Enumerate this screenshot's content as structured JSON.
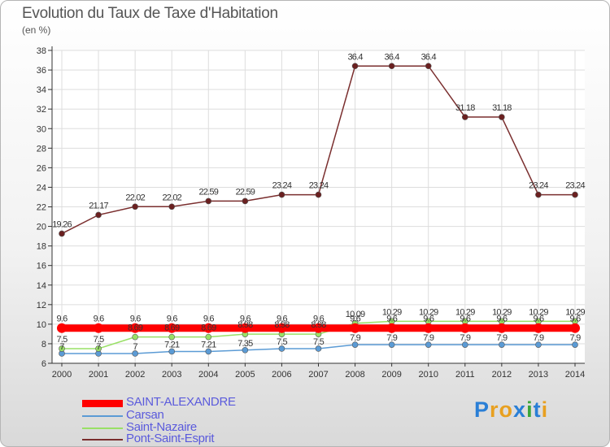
{
  "header": {
    "title": "Evolution du Taux de Taxe d'Habitation",
    "subtitle": "(en %)"
  },
  "logo": {
    "text": "Proxiti"
  },
  "chart_data": {
    "type": "line",
    "x": [
      "2000",
      "2001",
      "2002",
      "2003",
      "2004",
      "2005",
      "2006",
      "2007",
      "2008",
      "2009",
      "2010",
      "2011",
      "2012",
      "2013",
      "2014"
    ],
    "ylim": [
      6,
      38
    ],
    "yticks": [
      "6",
      "8",
      "10",
      "12",
      "14",
      "16",
      "18",
      "20",
      "22",
      "24",
      "26",
      "28",
      "30",
      "32",
      "34",
      "36",
      "38"
    ],
    "grid": true,
    "legend_position": "bottom-left",
    "series": [
      {
        "name": "SAINT-ALEXANDRE",
        "color": "#ff0000",
        "values": [
          9.6,
          9.6,
          9.6,
          9.6,
          9.6,
          9.6,
          9.6,
          9.6,
          9.6,
          9.6,
          9.6,
          9.6,
          9.6,
          9.6,
          9.6
        ],
        "labels": [
          "9.6",
          "9.6",
          "9.6",
          "9.6",
          "9.6",
          "9.6",
          "9.6",
          "9.6",
          "9.6",
          "9.6",
          "9.6",
          "9.6",
          "9.6",
          "9.6",
          "9.6"
        ]
      },
      {
        "name": "Carsan",
        "color": "#5b9bd5",
        "values": [
          7,
          7,
          7,
          7.21,
          7.21,
          7.35,
          7.5,
          7.5,
          7.9,
          7.9,
          7.9,
          7.9,
          7.9,
          7.9,
          7.9
        ],
        "labels": [
          "7",
          "7",
          "7",
          "7.21",
          "7.21",
          "7.35",
          "7.5",
          "7.5",
          "7.9",
          "7.9",
          "7.9",
          "7.9",
          "7.9",
          "7.9",
          "7.9"
        ]
      },
      {
        "name": "Saint-Nazaire",
        "color": "#99e066",
        "values": [
          7.5,
          7.5,
          8.69,
          8.69,
          8.69,
          8.98,
          8.98,
          8.98,
          10.09,
          10.29,
          10.29,
          10.29,
          10.29,
          10.29,
          10.29
        ],
        "labels": [
          "7.5",
          "7.5",
          "8.69",
          "8.69",
          "8.69",
          "8.98",
          "8.98",
          "8.98",
          "10.09",
          "10.29",
          "10.29",
          "10.29",
          "10.29",
          "10.29",
          "10.29"
        ]
      },
      {
        "name": "Pont-Saint-Esprit",
        "color": "#7a2e2e",
        "values": [
          19.26,
          21.17,
          22.02,
          22.02,
          22.59,
          22.59,
          23.24,
          23.24,
          36.4,
          36.4,
          36.4,
          31.18,
          31.18,
          23.24,
          23.24
        ],
        "labels": [
          "19.26",
          "21.17",
          "22.02",
          "22.02",
          "22.59",
          "22.59",
          "23.24",
          "23.24",
          "36.4",
          "36.4",
          "36.4",
          "31.18",
          "31.18",
          "23.24",
          "23.24"
        ]
      }
    ]
  }
}
